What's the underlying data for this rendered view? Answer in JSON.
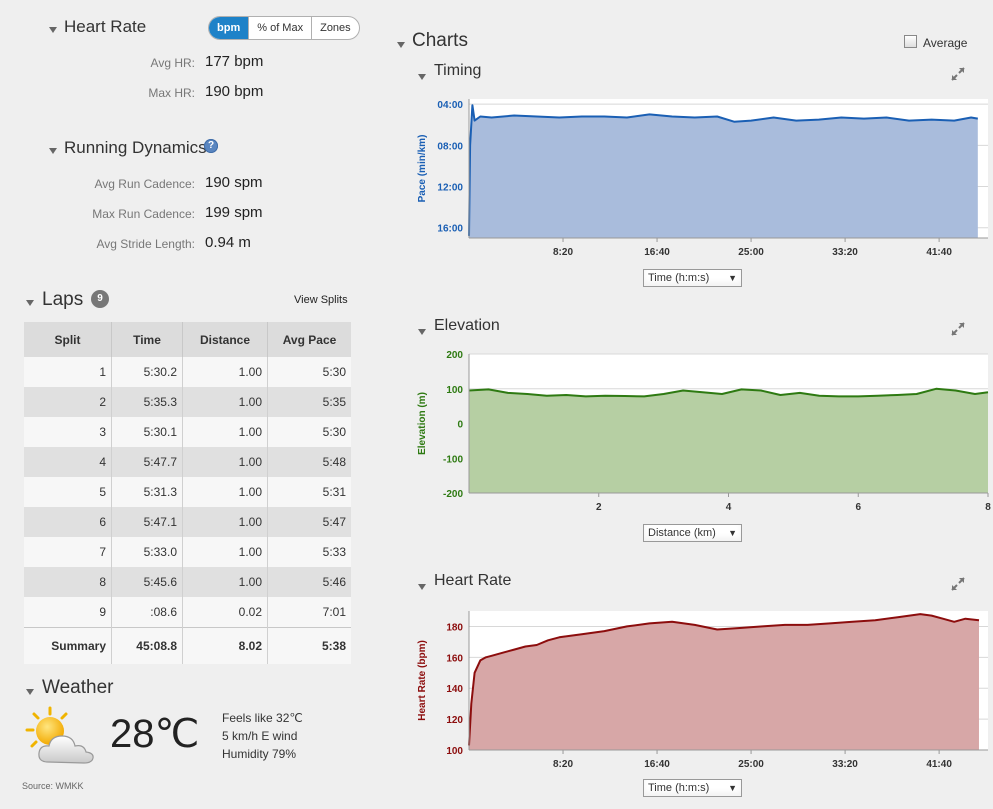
{
  "heart_rate": {
    "title": "Heart Rate",
    "toggle": [
      "bpm",
      "% of Max",
      "Zones"
    ],
    "avg_label": "Avg HR:",
    "avg_value": "177 bpm",
    "max_label": "Max HR:",
    "max_value": "190 bpm"
  },
  "running_dynamics": {
    "title": "Running Dynamics",
    "help_glyph": "?",
    "cadence_label": "Avg Run Cadence:",
    "cadence_value": "190 spm",
    "max_cadence_label": "Max Run Cadence:",
    "max_cadence_value": "199 spm",
    "stride_label": "Avg Stride Length:",
    "stride_value": "0.94 m"
  },
  "laps": {
    "title": "Laps",
    "count": "9",
    "view_splits": "View Splits",
    "columns": [
      "Split",
      "Time",
      "Distance",
      "Avg Pace"
    ],
    "rows": [
      [
        "1",
        "5:30.2",
        "1.00",
        "5:30"
      ],
      [
        "2",
        "5:35.3",
        "1.00",
        "5:35"
      ],
      [
        "3",
        "5:30.1",
        "1.00",
        "5:30"
      ],
      [
        "4",
        "5:47.7",
        "1.00",
        "5:48"
      ],
      [
        "5",
        "5:31.3",
        "1.00",
        "5:31"
      ],
      [
        "6",
        "5:47.1",
        "1.00",
        "5:47"
      ],
      [
        "7",
        "5:33.0",
        "1.00",
        "5:33"
      ],
      [
        "8",
        "5:45.6",
        "1.00",
        "5:46"
      ],
      [
        "9",
        ":08.6",
        "0.02",
        "7:01"
      ]
    ],
    "summary": [
      "Summary",
      "45:08.8",
      "8.02",
      "5:38"
    ]
  },
  "weather": {
    "title": "Weather",
    "temperature": "28℃",
    "feels_like": "Feels like 32℃",
    "wind": "5 km/h E wind",
    "humidity": "Humidity 79%",
    "source": "Source: WMKK",
    "icon": "partly-cloudy-icon"
  },
  "charts": {
    "title": "Charts",
    "average_label": "Average",
    "timing_title": "Timing",
    "elevation_title": "Elevation",
    "heart_rate_title": "Heart Rate",
    "timing_select": "Time (h:m:s)",
    "elevation_select": "Distance (km)",
    "heart_rate_select": "Time (h:m:s)"
  },
  "colors": {
    "pace_line": "#1a5fb4",
    "pace_fill": "#a9bcdc",
    "elev_line": "#2e7a12",
    "elev_fill": "#b6cfa3",
    "hr_line": "#8c0d0d",
    "hr_fill": "#d7a7a7",
    "accent": "#1e82c8"
  },
  "chart_data": [
    {
      "type": "area",
      "title": "Timing",
      "ylabel": "Pace (min/km)",
      "xlabel": "Time (h:m:s)",
      "y_ticks": [
        "04:00",
        "08:00",
        "12:00",
        "16:00"
      ],
      "x_ticks": [
        "8:20",
        "16:40",
        "25:00",
        "33:20",
        "41:40"
      ],
      "y_inverted": true,
      "ylim_minutes": [
        3.5,
        17
      ],
      "xlim_minutes": [
        0,
        46
      ],
      "x": [
        0.0,
        0.1,
        0.3,
        0.5,
        1,
        2,
        4,
        6,
        8,
        10,
        12,
        14,
        16,
        18,
        20,
        22,
        23.5,
        25,
        27,
        29,
        31,
        33,
        35,
        37,
        39,
        41,
        43,
        44.5,
        45.1
      ],
      "y": [
        16.8,
        8.0,
        4.1,
        5.6,
        5.2,
        5.3,
        5.1,
        5.2,
        5.3,
        5.2,
        5.2,
        5.3,
        5.0,
        5.2,
        5.3,
        5.2,
        5.7,
        5.6,
        5.3,
        5.6,
        5.5,
        5.3,
        5.4,
        5.3,
        5.6,
        5.5,
        5.6,
        5.3,
        5.4
      ]
    },
    {
      "type": "area",
      "title": "Elevation",
      "ylabel": "Elevation (m)",
      "xlabel": "Distance (km)",
      "y_ticks": [
        "200",
        "100",
        "0",
        "-100",
        "-200"
      ],
      "x_ticks": [
        "2",
        "4",
        "6",
        "8"
      ],
      "ylim": [
        -200,
        200
      ],
      "xlim": [
        0,
        8
      ],
      "x": [
        0.0,
        0.3,
        0.6,
        0.9,
        1.2,
        1.5,
        1.8,
        2.1,
        2.4,
        2.7,
        3.0,
        3.3,
        3.6,
        3.9,
        4.2,
        4.5,
        4.8,
        5.1,
        5.4,
        5.7,
        6.0,
        6.3,
        6.6,
        6.9,
        7.2,
        7.5,
        7.8,
        8.0
      ],
      "y": [
        95,
        98,
        88,
        85,
        80,
        82,
        78,
        80,
        79,
        78,
        85,
        95,
        90,
        85,
        98,
        95,
        82,
        88,
        80,
        78,
        78,
        80,
        82,
        85,
        100,
        95,
        85,
        90
      ]
    },
    {
      "type": "area",
      "title": "Heart Rate",
      "ylabel": "Heart Rate (bpm)",
      "xlabel": "Time (h:m:s)",
      "y_ticks": [
        "100",
        "120",
        "140",
        "160",
        "180"
      ],
      "x_ticks": [
        "8:20",
        "16:40",
        "25:00",
        "33:20",
        "41:40"
      ],
      "ylim": [
        100,
        190
      ],
      "xlim_minutes": [
        0,
        46
      ],
      "x": [
        0.0,
        0.2,
        0.5,
        1,
        1.5,
        2,
        3,
        4,
        5,
        6,
        7,
        8,
        9,
        10,
        12,
        14,
        16,
        18,
        20,
        22,
        24,
        26,
        28,
        30,
        32,
        34,
        36,
        38,
        40,
        41,
        42,
        43,
        44,
        45.2
      ],
      "y": [
        103,
        130,
        150,
        158,
        160,
        161,
        163,
        165,
        167,
        168,
        171,
        173,
        174,
        175,
        177,
        180,
        182,
        183,
        181,
        178,
        179,
        180,
        181,
        181,
        182,
        183,
        184,
        186,
        188,
        187,
        185,
        183,
        185,
        184
      ]
    }
  ]
}
